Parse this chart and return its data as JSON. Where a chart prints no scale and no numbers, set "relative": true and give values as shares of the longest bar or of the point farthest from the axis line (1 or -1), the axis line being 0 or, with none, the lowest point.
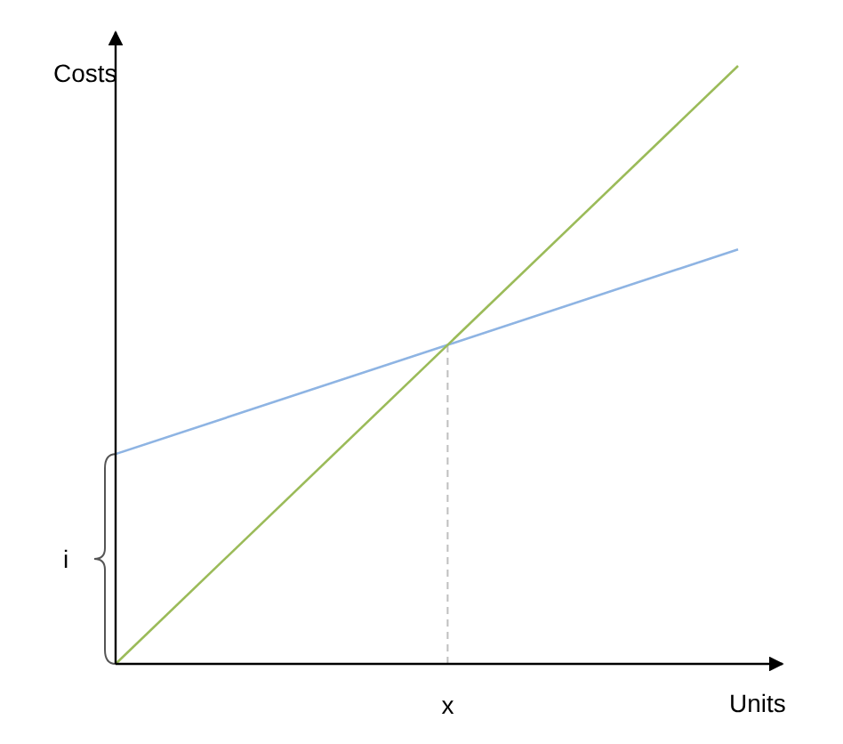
{
  "chart_data": {
    "type": "line",
    "relative": true,
    "ylabel": "Costs",
    "xlabel": "Units",
    "categories": [
      null,
      null
    ],
    "series": [
      {
        "color": "#8eb4e3",
        "values": [
          0.351,
          0.693
        ]
      },
      {
        "color": "#9bbb59",
        "values": [
          0,
          1
        ]
      }
    ],
    "annotations": [
      "x",
      "i"
    ]
  }
}
